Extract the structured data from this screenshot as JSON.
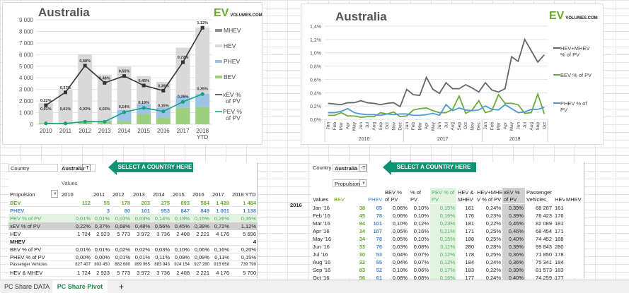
{
  "left_chart": {
    "title": "Australia",
    "logo": "EV",
    "logo_sub": "VOLUMES.COM",
    "chart_data": {
      "type": "bar",
      "stacked": true,
      "title": "Australia",
      "categories": [
        "2010",
        "2011",
        "2012",
        "2013",
        "2014",
        "2015",
        "2016",
        "2017",
        "2018 YTD"
      ],
      "ylim": [
        0,
        9000
      ],
      "yticks": [
        "0",
        "1 000",
        "2 000",
        "3 000",
        "4 000",
        "5 000",
        "6 000",
        "7 000",
        "8 000",
        "9 000"
      ],
      "series": [
        {
          "name": "BEV",
          "color": "#9dcf7e",
          "values": [
            112,
            55,
            178,
            203,
            275,
            893,
            584,
            1420,
            1484
          ]
        },
        {
          "name": "PHEV",
          "color": "#9cc3e6",
          "values": [
            0,
            3,
            80,
            101,
            953,
            847,
            849,
            1001,
            1138
          ]
        },
        {
          "name": "HEV",
          "color": "#d9d9d9",
          "values": [
            1724,
            2923,
            5773,
            3972,
            3736,
            2408,
            2221,
            4176,
            5696
          ]
        },
        {
          "name": "MHEV",
          "color": "#8c8c8c",
          "values": [
            0,
            0,
            0,
            0,
            0,
            0,
            0,
            0,
            4
          ]
        }
      ],
      "lines": [
        {
          "name": "xEV % of PV",
          "color": "#333333",
          "values": [
            0.22,
            0.37,
            0.68,
            0.48,
            0.56,
            0.45,
            0.39,
            0.72,
            1.12
          ],
          "labels": [
            "0,22%",
            "0,37%",
            "0,68%",
            "0,48%",
            "0,56%",
            "0,45%",
            "0,39%",
            "0,72%",
            "1,12%"
          ]
        },
        {
          "name": "PEV % of PV",
          "color": "#14a37f",
          "values": [
            0.01,
            0.01,
            0.03,
            0.03,
            0.14,
            0.19,
            0.15,
            0.26,
            0.35
          ],
          "labels": [
            "0,01%",
            "0,01%",
            "0,03%",
            "0,03%",
            "0,14%",
            "0,19%",
            "0,15%",
            "0,26%",
            "0,35%"
          ]
        }
      ],
      "secondary_ylim": [
        0,
        1.2
      ],
      "legend": "right"
    }
  },
  "right_chart": {
    "title": "Australia",
    "logo": "EV",
    "logo_sub": "VOLUMES.COM",
    "chart_data": {
      "type": "line",
      "title": "Australia",
      "months": [
        "Jan",
        "Feb",
        "Mar",
        "Apr",
        "May",
        "Jun",
        "Jul",
        "Aug",
        "Sep",
        "Oct",
        "Nov",
        "Dec",
        "Jan",
        "Feb",
        "Mar",
        "Apr",
        "May",
        "Jun",
        "Jul",
        "Aug",
        "Sep",
        "Oct",
        "Nov",
        "Dec",
        "Jan",
        "Feb",
        "Mar",
        "Apr",
        "May",
        "Jun",
        "Jul",
        "Aug",
        "Sep",
        "Oct"
      ],
      "years": [
        "2016",
        "2017",
        "2018"
      ],
      "ylim": [
        0,
        1.4
      ],
      "yticks": [
        "0,0%",
        "0,2%",
        "0,4%",
        "0,6%",
        "0,8%",
        "1,0%",
        "1,2%",
        "1,4%"
      ],
      "series": [
        {
          "name": "HEV+MHEV % of PV",
          "color": "#666666",
          "values": [
            0.24,
            0.23,
            0.22,
            0.25,
            0.25,
            0.28,
            0.25,
            0.24,
            0.22,
            0.24,
            0.25,
            0.19,
            0.45,
            0.37,
            0.36,
            0.63,
            0.45,
            0.39,
            0.55,
            0.46,
            0.46,
            0.52,
            0.47,
            0.41,
            0.55,
            0.44,
            0.41,
            0.46,
            0.94,
            0.87,
            1.2,
            1.03,
            0.86,
            0.97
          ]
        },
        {
          "name": "BEV % of PV",
          "color": "#6aaa3a",
          "values": [
            0.06,
            0.06,
            0.1,
            0.05,
            0.05,
            0.03,
            0.04,
            0.04,
            0.1,
            0.08,
            0.11,
            0.04,
            0.05,
            0.14,
            0.16,
            0.17,
            0.13,
            0.1,
            0.1,
            0.15,
            0.35,
            0.09,
            0.14,
            0.28,
            0.1,
            0.13,
            0.37,
            0.24,
            0.24,
            0.22,
            0.09,
            0.1,
            0.38,
            0.08
          ]
        },
        {
          "name": "PHEV % of PV",
          "color": "#4a9ad6",
          "values": [
            0.1,
            0.1,
            0.12,
            0.16,
            0.1,
            0.08,
            0.07,
            0.07,
            0.06,
            0.08,
            0.07,
            0.08,
            0.08,
            0.06,
            0.06,
            0.07,
            0.09,
            0.06,
            0.22,
            0.13,
            0.17,
            0.14,
            0.13,
            0.14,
            0.2,
            0.15,
            0.14,
            0.22,
            0.16,
            0.1,
            0.11,
            0.15,
            0.15,
            0.18
          ]
        }
      ],
      "legend": "right"
    }
  },
  "left_table": {
    "country_label": "Country",
    "country_value": "Australia",
    "select_label": "SELECT A COUNTRY HERE",
    "values_label": "Values",
    "propulsion_label": "Propulsion",
    "headers": [
      "2010",
      "2011",
      "2012",
      "2013",
      "2014",
      "2015",
      "2016",
      "2017",
      "2018 YTD"
    ],
    "rows": [
      {
        "label": "BEV",
        "cls": "bev",
        "values": [
          "112",
          "55",
          "178",
          "203",
          "275",
          "893",
          "584",
          "1 420",
          "1 484"
        ]
      },
      {
        "label": "PHEV",
        "cls": "phev",
        "values": [
          "",
          "3",
          "80",
          "101",
          "953",
          "847",
          "849",
          "1 001",
          "1 138"
        ]
      },
      {
        "label": "PEV % of PV",
        "cls": "pev",
        "values": [
          "0,01%",
          "0,01%",
          "0,03%",
          "0,03%",
          "0,14%",
          "0,19%",
          "0,15%",
          "0,26%",
          "0,35%"
        ]
      },
      {
        "label": "xEV % of PV",
        "cls": "xev",
        "values": [
          "0,22%",
          "0,37%",
          "0,68%",
          "0,48%",
          "0,56%",
          "0,45%",
          "0,39%",
          "0,72%",
          "1,12%"
        ]
      },
      {
        "label": "HEV",
        "cls": "",
        "values": [
          "1 724",
          "2 923",
          "5 773",
          "3 972",
          "3 736",
          "2 408",
          "2 221",
          "4 176",
          "5 696"
        ]
      },
      {
        "label": "MHEV",
        "cls": "bold",
        "values": [
          "",
          "",
          "",
          "",
          "",
          "",
          "",
          "",
          "4"
        ]
      },
      {
        "label": "BEV % of PV",
        "cls": "",
        "values": [
          "0,01%",
          "0,01%",
          "0,02%",
          "0,02%",
          "0,03%",
          "0,10%",
          "0,06%",
          "0,16%",
          "0,20%"
        ]
      },
      {
        "label": "PHEV % of PV",
        "cls": "",
        "values": [
          "0,00%",
          "0,00%",
          "0,01%",
          "0,01%",
          "0,11%",
          "0,09%",
          "0,09%",
          "0,11%",
          "0,15%"
        ]
      },
      {
        "label": "Passenger Vehicles",
        "cls": "small",
        "values": [
          "827 407",
          "803 450",
          "882 680",
          "899 965",
          "883 943",
          "924 154",
          "927 280",
          "915 658",
          "739 799"
        ]
      },
      {
        "label": "HEV & MHEV",
        "cls": "",
        "values": [
          "1 724",
          "2 923",
          "5 773",
          "3 972",
          "3 736",
          "2 408",
          "2 221",
          "4 176",
          "5 700"
        ]
      }
    ]
  },
  "right_table": {
    "country_label": "Country",
    "country_value": "Australia",
    "select_label": "SELECT A COUNTRY HERE",
    "propulsion_label": "Propulsion",
    "year_label": "2016",
    "headers": [
      "Values",
      "BEV",
      "PHEV",
      "BEV % of PV",
      "PHEV % of PV",
      "PEV % of PV",
      "HEV & MHEV",
      "HEV+MHE V % of PV",
      "xEV % of PV",
      "Passenger Vehicles",
      "HEV",
      "MHEV"
    ],
    "rows": [
      [
        "Jan '16",
        "38",
        "65",
        "0,06%",
        "0,10%",
        "0,15%",
        "161",
        "0,24%",
        "0,39%",
        "68 287",
        "161",
        ""
      ],
      [
        "Feb '16",
        "45",
        "78",
        "0,06%",
        "0,10%",
        "0,16%",
        "176",
        "0,23%",
        "0,39%",
        "76 423",
        "176",
        ""
      ],
      [
        "Mar '16",
        "84",
        "101",
        "0,10%",
        "0,12%",
        "0,23%",
        "181",
        "0,22%",
        "0,45%",
        "82 089",
        "181",
        ""
      ],
      [
        "Apr '16",
        "34",
        "107",
        "0,05%",
        "0,16%",
        "0,21%",
        "171",
        "0,25%",
        "0,46%",
        "68 454",
        "171",
        ""
      ],
      [
        "May '16",
        "34",
        "78",
        "0,05%",
        "0,10%",
        "0,15%",
        "188",
        "0,25%",
        "0,40%",
        "74 452",
        "188",
        ""
      ],
      [
        "Jun '16",
        "33",
        "76",
        "0,03%",
        "0,08%",
        "0,11%",
        "280",
        "0,28%",
        "0,39%",
        "99 843",
        "280",
        ""
      ],
      [
        "Jul '16",
        "30",
        "53",
        "0,04%",
        "0,07%",
        "0,12%",
        "178",
        "0,25%",
        "0,36%",
        "71 850",
        "178",
        ""
      ],
      [
        "Aug '16",
        "32",
        "55",
        "0,04%",
        "0,07%",
        "0,12%",
        "184",
        "0,24%",
        "0,36%",
        "75 341",
        "184",
        ""
      ],
      [
        "Sep '16",
        "83",
        "52",
        "0,10%",
        "0,06%",
        "0,17%",
        "183",
        "0,22%",
        "0,39%",
        "81 573",
        "183",
        ""
      ],
      [
        "Oct '16",
        "56",
        "61",
        "0,08%",
        "0,08%",
        "0,16%",
        "177",
        "0,24%",
        "0,40%",
        "74 259",
        "177",
        ""
      ]
    ]
  },
  "tabs": [
    {
      "label": "PC Share DATA"
    },
    {
      "label": "PC Share Pivot"
    },
    {
      "label": "+"
    }
  ]
}
